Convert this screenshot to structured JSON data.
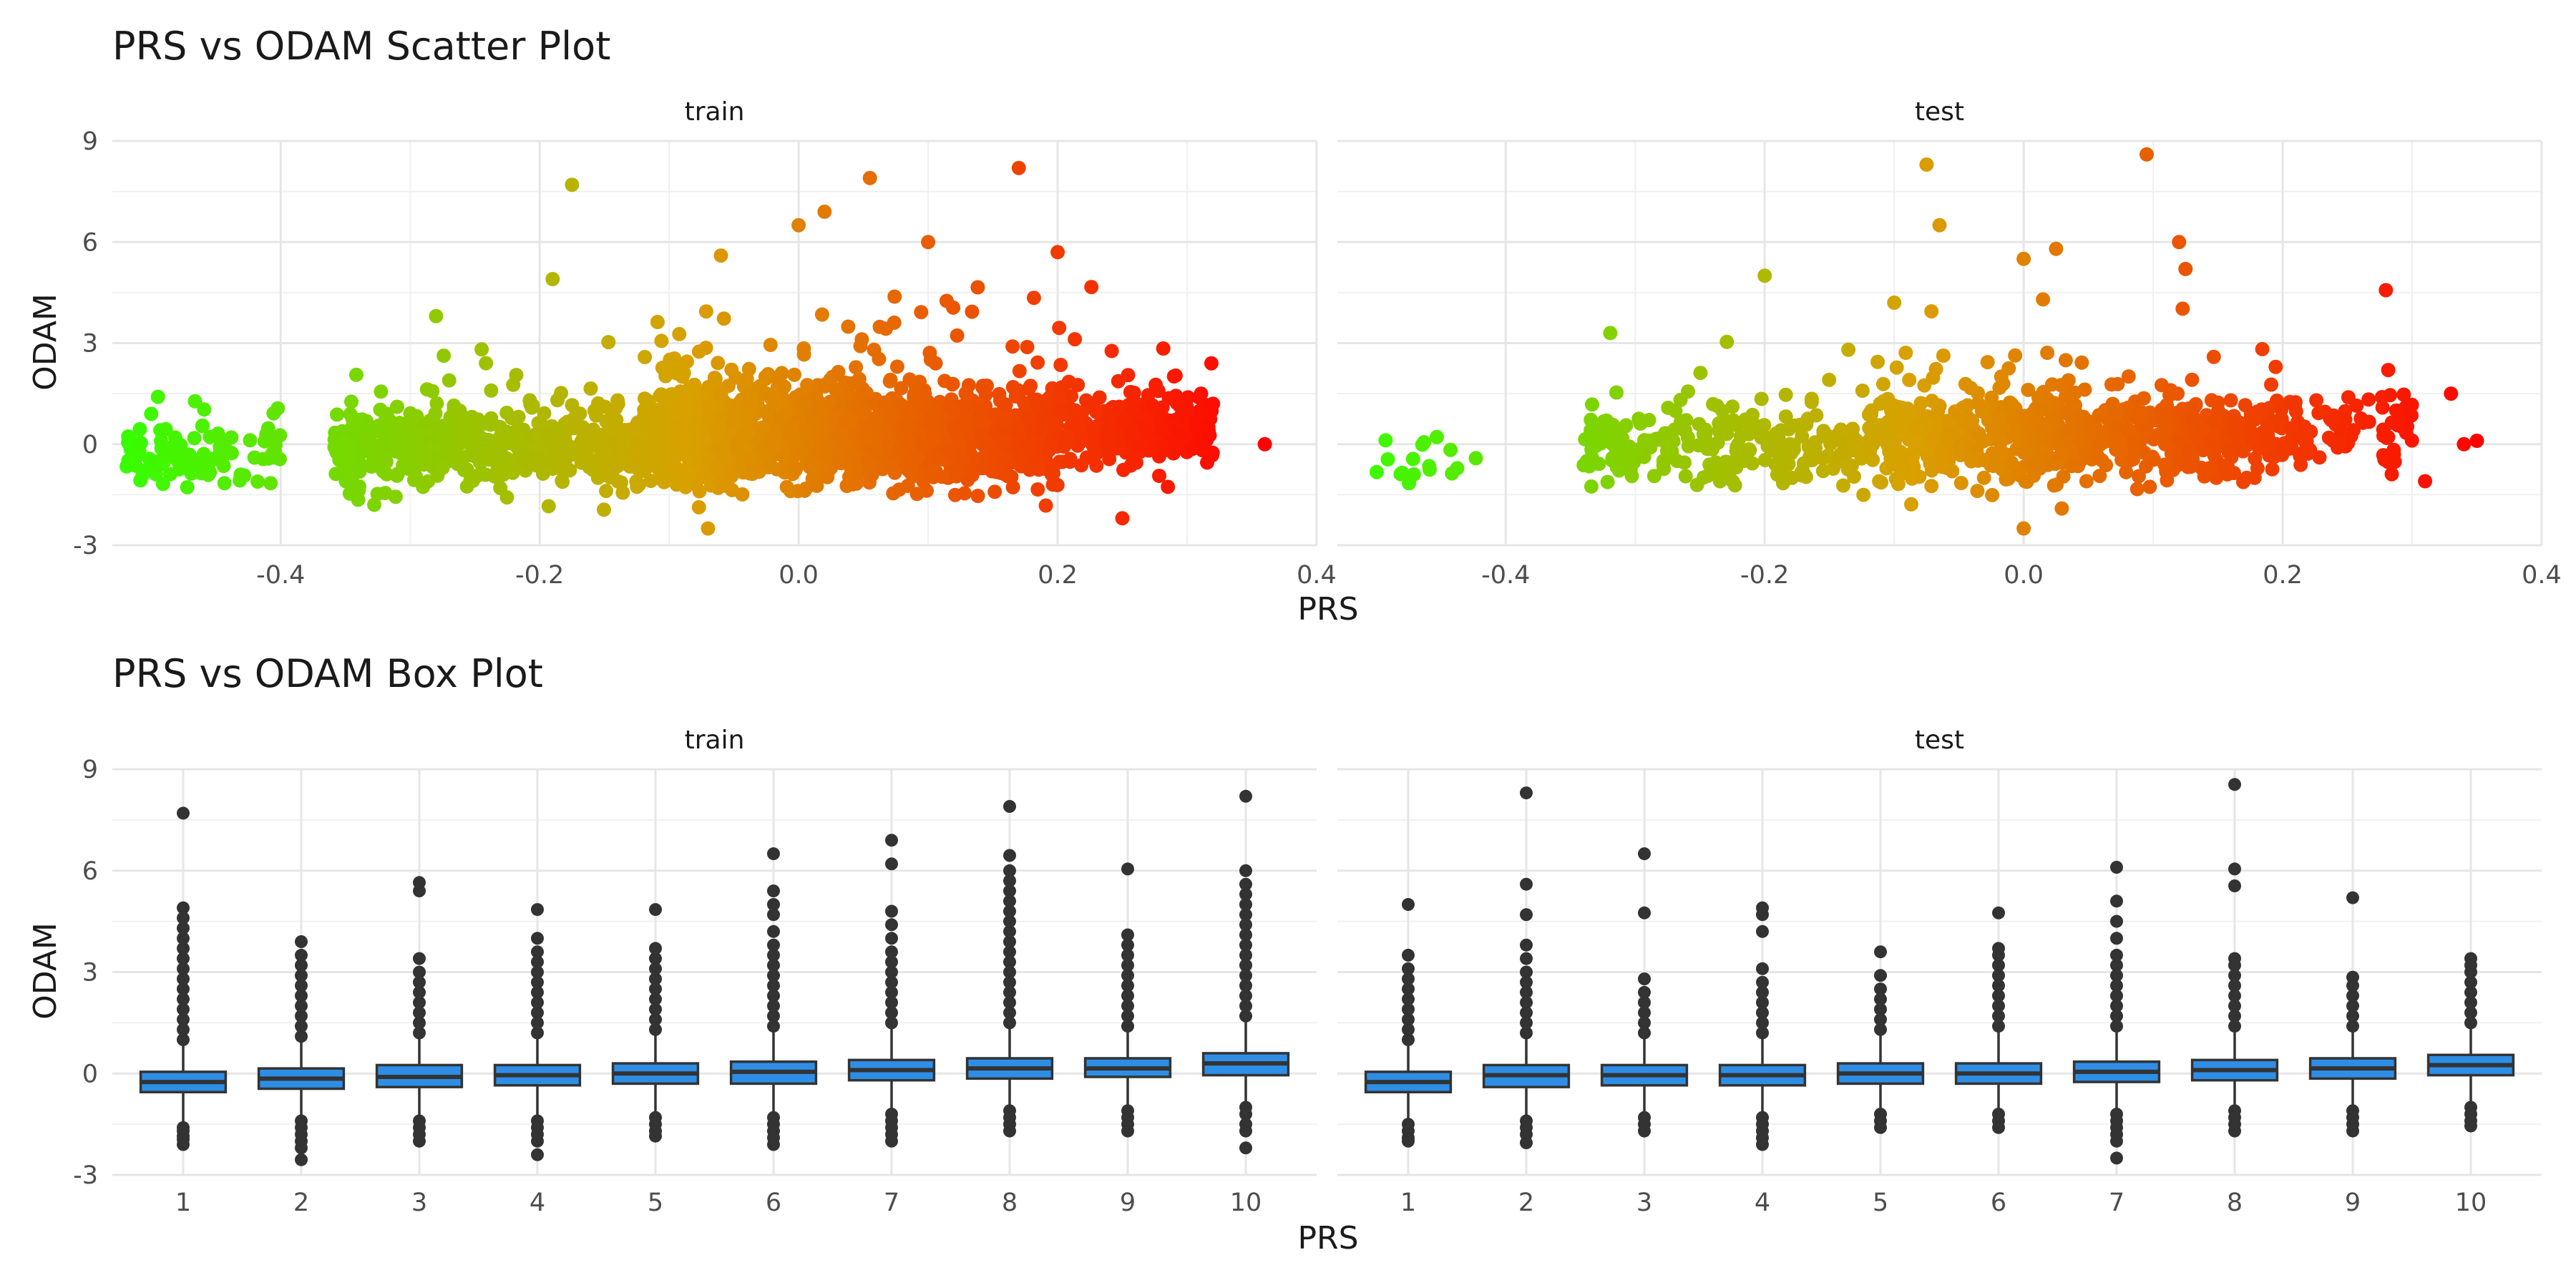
{
  "chart_data": [
    {
      "type": "scatter",
      "title": "PRS vs ODAM Scatter Plot",
      "xlabel": "PRS",
      "ylabel": "ODAM",
      "xlim": [
        -0.53,
        0.4
      ],
      "ylim": [
        -3,
        9
      ],
      "x_ticks": [
        -0.4,
        -0.2,
        0.0,
        0.2,
        0.4
      ],
      "y_ticks": [
        -3,
        0,
        3,
        6,
        9
      ],
      "grid": true,
      "color_scale": {
        "low": "#33ff00",
        "mid": "#d9a000",
        "high": "#ff0000",
        "low_value": -0.53,
        "high_value": 0.36,
        "mapped_to": "PRS"
      },
      "panels": [
        {
          "name": "train",
          "clusters": [
            {
              "x_min": -0.52,
              "x_max": -0.4,
              "y_center": -0.4,
              "y_spread": 0.45,
              "n": 90
            },
            {
              "x_min": -0.36,
              "x_max": -0.12,
              "y_center": -0.1,
              "y_spread": 0.6,
              "n": 520
            },
            {
              "x_min": -0.12,
              "x_max": 0.05,
              "y_center": 0.3,
              "y_spread": 0.75,
              "n": 900
            },
            {
              "x_min": 0.05,
              "x_max": 0.2,
              "y_center": 0.2,
              "y_spread": 0.65,
              "n": 700
            },
            {
              "x_min": 0.2,
              "x_max": 0.32,
              "y_center": 0.4,
              "y_spread": 0.5,
              "n": 280
            }
          ],
          "highlighted_points": [
            {
              "x": -0.175,
              "y": 7.7
            },
            {
              "x": 0.17,
              "y": 8.2
            },
            {
              "x": 0.055,
              "y": 7.9
            },
            {
              "x": -0.28,
              "y": 3.8
            },
            {
              "x": 0.36,
              "y": 0.0
            },
            {
              "x": 0.25,
              "y": -2.2
            },
            {
              "x": 0.0,
              "y": 6.5
            },
            {
              "x": 0.02,
              "y": 6.9
            },
            {
              "x": 0.2,
              "y": 5.7
            },
            {
              "x": -0.06,
              "y": 5.6
            },
            {
              "x": -0.19,
              "y": 4.9
            },
            {
              "x": 0.1,
              "y": 6.0
            },
            {
              "x": -0.07,
              "y": -2.5
            },
            {
              "x": -0.5,
              "y": 0.9
            },
            {
              "x": 0.32,
              "y": 1.2
            }
          ]
        },
        {
          "name": "test",
          "clusters": [
            {
              "x_min": -0.5,
              "x_max": -0.42,
              "y_center": -0.5,
              "y_spread": 0.4,
              "n": 16
            },
            {
              "x_min": -0.34,
              "x_max": -0.12,
              "y_center": -0.1,
              "y_spread": 0.55,
              "n": 230
            },
            {
              "x_min": -0.12,
              "x_max": 0.05,
              "y_center": 0.2,
              "y_spread": 0.7,
              "n": 380
            },
            {
              "x_min": 0.05,
              "x_max": 0.2,
              "y_center": 0.2,
              "y_spread": 0.6,
              "n": 290
            },
            {
              "x_min": 0.2,
              "x_max": 0.3,
              "y_center": 0.4,
              "y_spread": 0.55,
              "n": 90
            }
          ],
          "highlighted_points": [
            {
              "x": -0.075,
              "y": 8.3
            },
            {
              "x": 0.095,
              "y": 8.6
            },
            {
              "x": -0.065,
              "y": 6.5
            },
            {
              "x": 0.12,
              "y": 6.0
            },
            {
              "x": 0.125,
              "y": 5.2
            },
            {
              "x": -0.2,
              "y": 5.0
            },
            {
              "x": 0.35,
              "y": 0.1
            },
            {
              "x": 0.31,
              "y": -1.1
            },
            {
              "x": 0.0,
              "y": -2.5
            },
            {
              "x": -0.48,
              "y": -0.85
            },
            {
              "x": 0.34,
              "y": 0.0
            },
            {
              "x": 0.33,
              "y": 1.5
            },
            {
              "x": 0.0,
              "y": 5.5
            },
            {
              "x": -0.1,
              "y": 4.2
            },
            {
              "x": 0.025,
              "y": 5.8
            }
          ]
        }
      ]
    },
    {
      "type": "box",
      "title": "PRS vs ODAM Box Plot",
      "xlabel": "PRS",
      "ylabel": "ODAM",
      "ylim": [
        -3,
        9
      ],
      "y_ticks": [
        -3,
        0,
        3,
        6,
        9
      ],
      "categories": [
        "1",
        "2",
        "3",
        "4",
        "5",
        "6",
        "7",
        "8",
        "9",
        "10"
      ],
      "grid": true,
      "box_fill": "#2e8ee6",
      "box_stroke": "#333333",
      "panels": [
        {
          "name": "train",
          "boxes": [
            {
              "q1": -0.55,
              "median": -0.25,
              "q3": 0.05,
              "whisker_low": -1.5,
              "whisker_high": 0.9,
              "outliers_low": [
                -1.6,
                -1.7,
                -1.85,
                -1.95,
                -2.1
              ],
              "outliers_high": [
                1.0,
                1.3,
                1.6,
                1.9,
                2.2,
                2.5,
                2.8,
                3.1,
                3.4,
                3.7,
                4.0,
                4.3,
                4.6,
                4.9,
                7.7
              ]
            },
            {
              "q1": -0.45,
              "median": -0.15,
              "q3": 0.15,
              "whisker_low": -1.3,
              "whisker_high": 1.0,
              "outliers_low": [
                -1.4,
                -1.6,
                -1.8,
                -2.0,
                -2.2,
                -2.55
              ],
              "outliers_high": [
                1.1,
                1.4,
                1.7,
                2.0,
                2.3,
                2.6,
                2.9,
                3.2,
                3.5,
                3.9
              ]
            },
            {
              "q1": -0.4,
              "median": -0.1,
              "q3": 0.25,
              "whisker_low": -1.3,
              "whisker_high": 1.1,
              "outliers_low": [
                -1.4,
                -1.6,
                -1.8,
                -2.0
              ],
              "outliers_high": [
                1.2,
                1.5,
                1.8,
                2.1,
                2.4,
                2.7,
                3.0,
                3.4,
                5.4,
                5.65
              ]
            },
            {
              "q1": -0.35,
              "median": -0.05,
              "q3": 0.25,
              "whisker_low": -1.3,
              "whisker_high": 1.1,
              "outliers_low": [
                -1.4,
                -1.6,
                -1.8,
                -2.0,
                -2.4
              ],
              "outliers_high": [
                1.2,
                1.5,
                1.8,
                2.1,
                2.4,
                2.7,
                3.0,
                3.3,
                3.6,
                4.0,
                4.85
              ]
            },
            {
              "q1": -0.3,
              "median": 0.0,
              "q3": 0.3,
              "whisker_low": -1.2,
              "whisker_high": 1.2,
              "outliers_low": [
                -1.3,
                -1.5,
                -1.7,
                -1.85
              ],
              "outliers_high": [
                1.3,
                1.6,
                1.9,
                2.2,
                2.5,
                2.8,
                3.1,
                3.4,
                3.7,
                4.85
              ]
            },
            {
              "q1": -0.3,
              "median": 0.05,
              "q3": 0.35,
              "whisker_low": -1.2,
              "whisker_high": 1.3,
              "outliers_low": [
                -1.3,
                -1.5,
                -1.7,
                -1.9,
                -2.1
              ],
              "outliers_high": [
                1.4,
                1.7,
                2.0,
                2.3,
                2.6,
                2.9,
                3.2,
                3.5,
                3.8,
                4.2,
                4.7,
                5.0,
                5.4,
                6.5
              ]
            },
            {
              "q1": -0.2,
              "median": 0.1,
              "q3": 0.4,
              "whisker_low": -1.1,
              "whisker_high": 1.4,
              "outliers_low": [
                -1.2,
                -1.4,
                -1.6,
                -1.8,
                -2.0
              ],
              "outliers_high": [
                1.5,
                1.8,
                2.1,
                2.4,
                2.7,
                3.0,
                3.3,
                3.6,
                4.0,
                4.4,
                4.8,
                6.2,
                6.9
              ]
            },
            {
              "q1": -0.15,
              "median": 0.15,
              "q3": 0.45,
              "whisker_low": -1.0,
              "whisker_high": 1.4,
              "outliers_low": [
                -1.1,
                -1.3,
                -1.5,
                -1.7
              ],
              "outliers_high": [
                1.5,
                1.8,
                2.1,
                2.4,
                2.7,
                3.0,
                3.3,
                3.6,
                3.9,
                4.2,
                4.5,
                4.8,
                5.1,
                5.4,
                5.7,
                6.0,
                6.45,
                7.9
              ]
            },
            {
              "q1": -0.1,
              "median": 0.15,
              "q3": 0.45,
              "whisker_low": -1.0,
              "whisker_high": 1.3,
              "outliers_low": [
                -1.1,
                -1.3,
                -1.5,
                -1.7
              ],
              "outliers_high": [
                1.4,
                1.7,
                2.0,
                2.3,
                2.6,
                2.9,
                3.2,
                3.5,
                3.8,
                4.1,
                6.05
              ]
            },
            {
              "q1": -0.05,
              "median": 0.3,
              "q3": 0.6,
              "whisker_low": -0.9,
              "whisker_high": 1.6,
              "outliers_low": [
                -1.0,
                -1.2,
                -1.5,
                -1.7,
                -2.2
              ],
              "outliers_high": [
                1.7,
                2.0,
                2.3,
                2.6,
                2.9,
                3.2,
                3.5,
                3.8,
                4.1,
                4.4,
                4.7,
                5.0,
                5.3,
                5.6,
                6.0,
                8.2
              ]
            }
          ]
        },
        {
          "name": "test",
          "boxes": [
            {
              "q1": -0.55,
              "median": -0.25,
              "q3": 0.05,
              "whisker_low": -1.4,
              "whisker_high": 0.9,
              "outliers_low": [
                -1.5,
                -1.7,
                -1.9,
                -2.0
              ],
              "outliers_high": [
                1.0,
                1.3,
                1.6,
                1.9,
                2.2,
                2.5,
                2.8,
                3.1,
                3.5,
                5.0
              ]
            },
            {
              "q1": -0.4,
              "median": -0.05,
              "q3": 0.25,
              "whisker_low": -1.3,
              "whisker_high": 1.1,
              "outliers_low": [
                -1.4,
                -1.6,
                -1.8,
                -2.05
              ],
              "outliers_high": [
                1.2,
                1.5,
                1.8,
                2.1,
                2.4,
                2.7,
                3.0,
                3.4,
                3.8,
                4.7,
                5.6,
                8.3
              ]
            },
            {
              "q1": -0.35,
              "median": -0.05,
              "q3": 0.25,
              "whisker_low": -1.2,
              "whisker_high": 1.1,
              "outliers_low": [
                -1.3,
                -1.5,
                -1.7
              ],
              "outliers_high": [
                1.2,
                1.5,
                1.8,
                2.1,
                2.4,
                2.8,
                4.75,
                6.5
              ]
            },
            {
              "q1": -0.35,
              "median": -0.05,
              "q3": 0.25,
              "whisker_low": -1.2,
              "whisker_high": 1.1,
              "outliers_low": [
                -1.3,
                -1.5,
                -1.7,
                -1.9,
                -2.1
              ],
              "outliers_high": [
                1.2,
                1.5,
                1.8,
                2.1,
                2.4,
                2.7,
                3.1,
                4.2,
                4.7,
                4.9
              ]
            },
            {
              "q1": -0.3,
              "median": 0.0,
              "q3": 0.3,
              "whisker_low": -1.1,
              "whisker_high": 1.2,
              "outliers_low": [
                -1.2,
                -1.4,
                -1.6
              ],
              "outliers_high": [
                1.3,
                1.6,
                1.9,
                2.2,
                2.5,
                2.9,
                3.6
              ]
            },
            {
              "q1": -0.3,
              "median": 0.0,
              "q3": 0.3,
              "whisker_low": -1.1,
              "whisker_high": 1.3,
              "outliers_low": [
                -1.2,
                -1.4,
                -1.6
              ],
              "outliers_high": [
                1.4,
                1.7,
                2.0,
                2.3,
                2.6,
                2.9,
                3.2,
                3.5,
                3.7,
                4.75
              ]
            },
            {
              "q1": -0.25,
              "median": 0.05,
              "q3": 0.35,
              "whisker_low": -1.1,
              "whisker_high": 1.3,
              "outliers_low": [
                -1.2,
                -1.4,
                -1.6,
                -1.8,
                -2.0,
                -2.5
              ],
              "outliers_high": [
                1.4,
                1.7,
                2.0,
                2.3,
                2.6,
                2.9,
                3.2,
                3.5,
                4.0,
                4.5,
                5.1,
                6.1
              ]
            },
            {
              "q1": -0.2,
              "median": 0.1,
              "q3": 0.4,
              "whisker_low": -1.0,
              "whisker_high": 1.3,
              "outliers_low": [
                -1.1,
                -1.3,
                -1.5,
                -1.7
              ],
              "outliers_high": [
                1.4,
                1.7,
                2.0,
                2.3,
                2.6,
                2.9,
                3.2,
                3.4,
                5.55,
                6.05,
                8.55
              ]
            },
            {
              "q1": -0.15,
              "median": 0.15,
              "q3": 0.45,
              "whisker_low": -1.0,
              "whisker_high": 1.3,
              "outliers_low": [
                -1.1,
                -1.3,
                -1.5,
                -1.7
              ],
              "outliers_high": [
                1.4,
                1.7,
                2.0,
                2.3,
                2.6,
                2.85,
                5.2
              ]
            },
            {
              "q1": -0.05,
              "median": 0.25,
              "q3": 0.55,
              "whisker_low": -0.9,
              "whisker_high": 1.4,
              "outliers_low": [
                -1.0,
                -1.2,
                -1.4,
                -1.55
              ],
              "outliers_high": [
                1.5,
                1.8,
                2.1,
                2.4,
                2.7,
                3.0,
                3.2,
                3.4
              ]
            }
          ]
        }
      ]
    }
  ]
}
